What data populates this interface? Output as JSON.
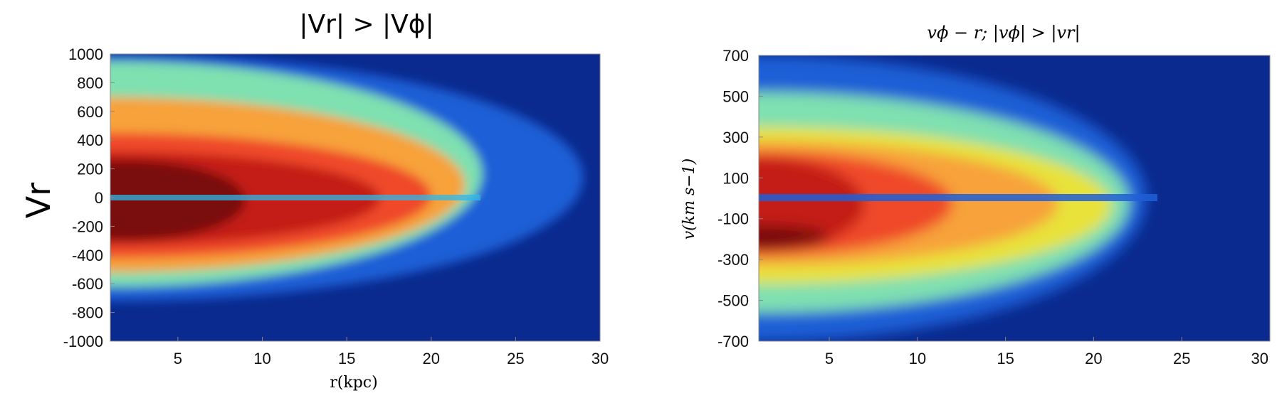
{
  "chart_data": [
    {
      "type": "heatmap",
      "title": "|Vr| > |Vϕ|",
      "xlabel": "r(kpc)",
      "ylabel": "Vr",
      "xlim": [
        1,
        30
      ],
      "ylim": [
        -1000,
        1000
      ],
      "x_ticks": [
        "5",
        "10",
        "15",
        "20",
        "25",
        "30"
      ],
      "y_ticks": [
        "1000",
        "800",
        "600",
        "400",
        "200",
        "0",
        "-200",
        "-400",
        "-600",
        "-800",
        "-1000"
      ],
      "colormap": [
        "#0a2a8f",
        "#1f5fd6",
        "#2fb7e8",
        "#7fe0b0",
        "#e8e23a",
        "#f7a23a",
        "#ef4a2a",
        "#c41d13",
        "#7a0b08"
      ],
      "background_color": "#0a2a8f",
      "regions": [
        {
          "level": 1,
          "r_range": [
            1,
            29
          ],
          "v_range": [
            -720,
            1000
          ]
        },
        {
          "level": 3,
          "r_range": [
            1,
            23
          ],
          "v_range": [
            -620,
            950
          ]
        },
        {
          "level": 5,
          "r_range": [
            1,
            22
          ],
          "v_range": [
            -520,
            700
          ]
        },
        {
          "level": 6,
          "r_range": [
            1,
            20
          ],
          "v_range": [
            -420,
            450
          ]
        },
        {
          "level": 7,
          "r_range": [
            1,
            17
          ],
          "v_range": [
            -330,
            320
          ]
        },
        {
          "level": 8,
          "r_range": [
            2,
            9
          ],
          "v_range": [
            -300,
            260
          ]
        }
      ]
    },
    {
      "type": "heatmap",
      "title": "vϕ − r; |vϕ| > |vr|",
      "xlabel": "",
      "ylabel": "v(km s−1)",
      "xlim": [
        1,
        30
      ],
      "ylim": [
        -700,
        700
      ],
      "x_ticks": [
        "5",
        "10",
        "15",
        "20",
        "25",
        "30"
      ],
      "y_ticks": [
        "700",
        "500",
        "300",
        "100",
        "-100",
        "-300",
        "-500",
        "-700"
      ],
      "colormap": [
        "#0a2a8f",
        "#1f5fd6",
        "#2fb7e8",
        "#7fe0b0",
        "#e8e23a",
        "#f7a23a",
        "#ef4a2a",
        "#c41d13",
        "#7a0b08"
      ],
      "background_color": "#0a2a8f",
      "regions": [
        {
          "level": 1,
          "r_range": [
            1,
            23
          ],
          "v_range": [
            -700,
            700
          ]
        },
        {
          "level": 3,
          "r_range": [
            1,
            22
          ],
          "v_range": [
            -560,
            520
          ]
        },
        {
          "level": 4,
          "r_range": [
            1,
            21
          ],
          "v_range": [
            -420,
            350
          ]
        },
        {
          "level": 5,
          "r_range": [
            1,
            18
          ],
          "v_range": [
            -330,
            280
          ]
        },
        {
          "level": 6,
          "r_range": [
            1,
            12
          ],
          "v_range": [
            -280,
            230
          ]
        },
        {
          "level": 7,
          "r_range": [
            1,
            7
          ],
          "v_range": [
            -260,
            200
          ]
        },
        {
          "level": 8,
          "r_range": [
            1,
            5
          ],
          "v_range": [
            -250,
            -130
          ]
        }
      ]
    }
  ]
}
